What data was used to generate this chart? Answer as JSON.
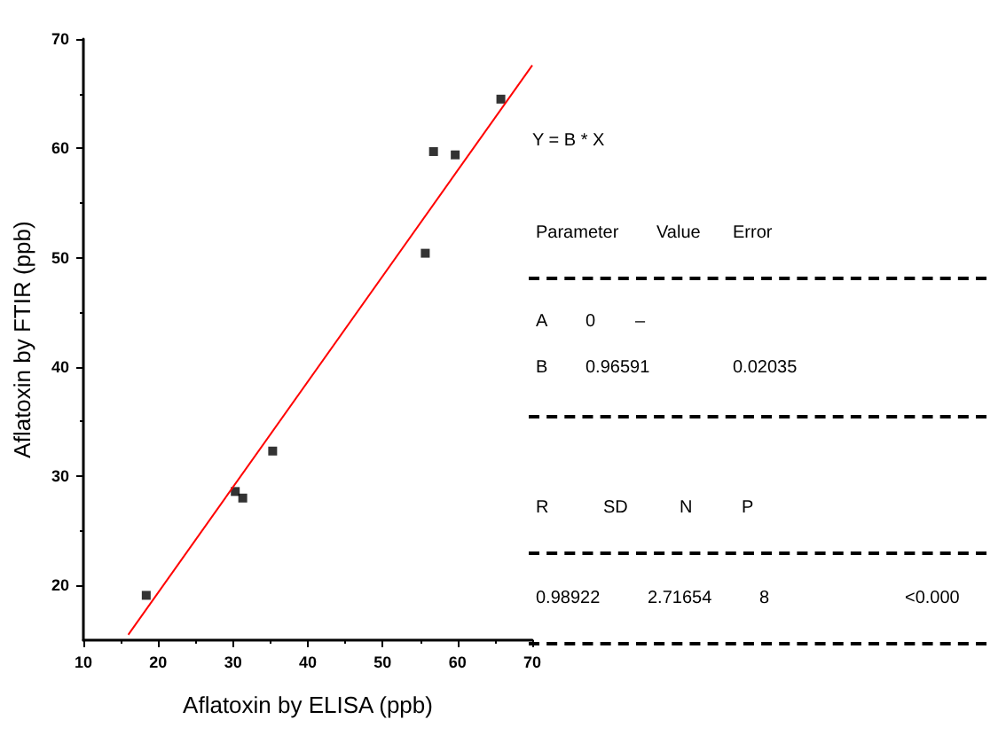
{
  "chart_data": {
    "type": "scatter",
    "xlabel": "Aflatoxin by ELISA (ppb)",
    "ylabel": "Aflatoxin by FTIR (ppb)",
    "xlim": [
      10,
      70
    ],
    "xticks": [
      10,
      20,
      30,
      40,
      50,
      60,
      70
    ],
    "ylim": [
      15,
      70
    ],
    "yticks": [
      20,
      30,
      40,
      50,
      60,
      70
    ],
    "grid": false,
    "marker": "square",
    "series": [
      {
        "color": "#000000",
        "x": [
          18.4,
          30.3,
          31.3,
          35.3,
          55.7,
          56.8,
          59.7,
          65.8
        ],
        "values": [
          19.1,
          28.6,
          28.0,
          32.3,
          50.4,
          59.7,
          59.4,
          64.5
        ]
      },
      {
        "type": "line",
        "color": "#ff0000",
        "x": [
          16,
          70
        ],
        "values": [
          15.5,
          67.6
        ],
        "line_style": "solid",
        "marker": "none"
      }
    ],
    "annotations": [
      "Y = B * X",
      "Parameter",
      "Value",
      "Error",
      "A",
      "0",
      "–",
      "B",
      "0.96591",
      "0.02035",
      "R",
      "SD",
      "N",
      "P",
      "0.98922",
      "2.71654",
      "8",
      "<0.000"
    ]
  }
}
